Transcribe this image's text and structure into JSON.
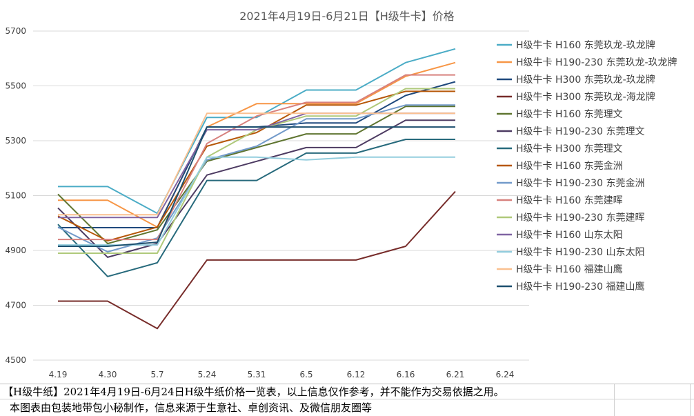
{
  "chart_data": {
    "type": "line",
    "title": "2021年4月19日-6月21日【H级牛卡】价格",
    "xlabel": "",
    "ylabel": "",
    "categories": [
      "4.19",
      "4.30",
      "5.7",
      "5.24",
      "5.31",
      "6.5",
      "6.12",
      "6.16",
      "6.21",
      "6.24"
    ],
    "yticks": [
      4500,
      4700,
      4900,
      5100,
      5300,
      5500,
      5700
    ],
    "ylim": [
      4500,
      5700
    ],
    "grid": true,
    "legend_position": "right",
    "series": [
      {
        "name": "H级牛卡 H160 东莞玖龙-玖龙牌",
        "color": "#4bacc6",
        "values": [
          5133,
          5133,
          5035,
          5385,
          5385,
          5485,
          5485,
          5585,
          5635,
          null
        ]
      },
      {
        "name": "H级牛卡 H190-230 东莞玖龙-玖龙牌",
        "color": "#f79646",
        "values": [
          5083,
          5083,
          4985,
          5350,
          5435,
          5435,
          5435,
          5535,
          5585,
          null
        ]
      },
      {
        "name": "H级牛卡 H300 东莞玖龙-玖龙牌",
        "color": "#1f497d",
        "values": [
          4983,
          4983,
          4983,
          5350,
          5350,
          5365,
          5365,
          5465,
          5515,
          null
        ]
      },
      {
        "name": "H级牛卡 H300 东莞玖龙-海龙牌",
        "color": "#772c2a",
        "values": [
          4715,
          4715,
          4615,
          4865,
          4865,
          4865,
          4865,
          4915,
          5115,
          null
        ]
      },
      {
        "name": "H级牛卡 H160 东莞理文",
        "color": "#5f7530",
        "values": [
          5105,
          4925,
          4975,
          5225,
          5275,
          5325,
          5325,
          5425,
          5425,
          null
        ]
      },
      {
        "name": "H级牛卡 H190-230 东莞理文",
        "color": "#4d3b62",
        "values": [
          5055,
          4875,
          4925,
          5175,
          5225,
          5275,
          5275,
          5375,
          5375,
          null
        ]
      },
      {
        "name": "H级牛卡 H300 东莞理文",
        "color": "#276a7c",
        "values": [
          4995,
          4805,
          4855,
          5155,
          5155,
          5255,
          5255,
          5305,
          5305,
          null
        ]
      },
      {
        "name": "H级牛卡 H160 东莞金洲",
        "color": "#b65708",
        "values": [
          5025,
          4935,
          4985,
          5280,
          5330,
          5430,
          5430,
          5480,
          5480,
          null
        ]
      },
      {
        "name": "H级牛卡 H190-230 东莞金洲",
        "color": "#729aca",
        "values": [
          4985,
          4895,
          4945,
          5230,
          5280,
          5380,
          5380,
          5430,
          5430,
          null
        ]
      },
      {
        "name": "H级牛卡 H160 东莞建晖",
        "color": "#d7817e",
        "values": [
          4940,
          4940,
          4940,
          5290,
          5390,
          5440,
          5440,
          5540,
          5540,
          null
        ]
      },
      {
        "name": "H级牛卡 H190-230 东莞建晖",
        "color": "#afc97a",
        "values": [
          4890,
          4890,
          4890,
          5240,
          5340,
          5390,
          5390,
          5490,
          5490,
          null
        ]
      },
      {
        "name": "H级牛卡 H160 山东太阳",
        "color": "#8064a2",
        "values": [
          5020,
          5020,
          5020,
          5340,
          5340,
          5400,
          5400,
          5400,
          5400,
          null
        ]
      },
      {
        "name": "H级牛卡 H190-230 山东太阳",
        "color": "#93cddd",
        "values": [
          4920,
          4920,
          4920,
          5240,
          5240,
          5230,
          5240,
          5240,
          5240,
          null
        ]
      },
      {
        "name": "H级牛卡 H160 福建山鹰",
        "color": "#fac090",
        "values": [
          5030,
          5030,
          5030,
          5400,
          5400,
          5400,
          5400,
          5400,
          5400,
          null
        ]
      },
      {
        "name": "H级牛卡 H190-230 福建山鹰",
        "color": "#1c4f6e",
        "values": [
          4915,
          4915,
          4930,
          5350,
          5350,
          5350,
          5350,
          5350,
          5350,
          null
        ]
      }
    ]
  },
  "footer": {
    "line1": "【H级牛纸】2021年4月19日-6月24日H级牛纸价格一览表，以上信息仅作参考，并不能作为交易依据之用。",
    "line2": "本图表由包装地带包小秘制作，信息来源于生意社、卓创资讯、及微信朋友圈等"
  }
}
